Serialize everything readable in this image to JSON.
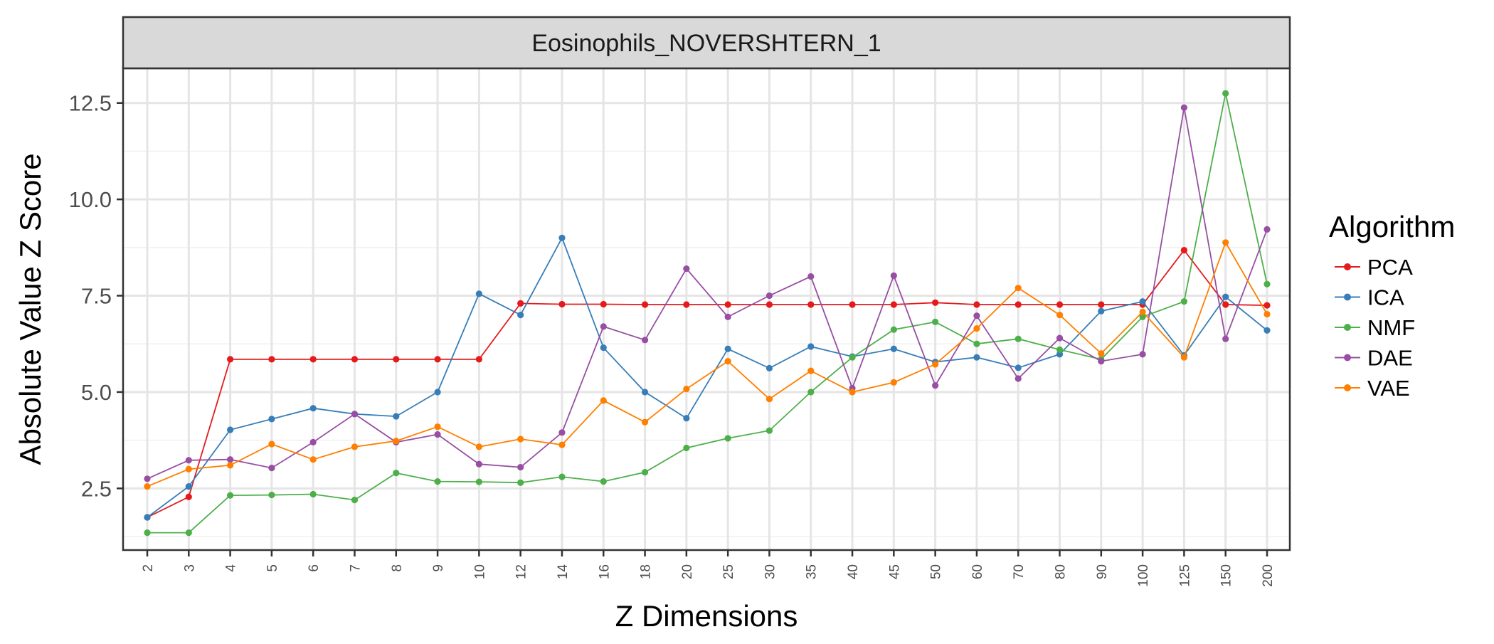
{
  "chart_data": {
    "type": "line",
    "facet_title": "Eosinophils_NOVERSHTERN_1",
    "xlabel": "Z Dimensions",
    "ylabel": "Absolute Value Z Score",
    "categories": [
      "2",
      "3",
      "4",
      "5",
      "6",
      "7",
      "8",
      "9",
      "10",
      "12",
      "14",
      "16",
      "18",
      "20",
      "25",
      "30",
      "35",
      "40",
      "45",
      "50",
      "60",
      "70",
      "80",
      "90",
      "100",
      "125",
      "150",
      "200"
    ],
    "yticks": [
      "2.5",
      "5.0",
      "7.5",
      "10.0",
      "12.5"
    ],
    "ylim": [
      0.9,
      13.4
    ],
    "grid": true,
    "legend": {
      "title": "Algorithm",
      "position": "right"
    },
    "series": [
      {
        "name": "PCA",
        "color": "#E41A1C",
        "values": [
          1.75,
          2.28,
          5.85,
          5.85,
          5.85,
          5.85,
          5.85,
          5.85,
          5.85,
          7.3,
          7.28,
          7.28,
          7.27,
          7.27,
          7.27,
          7.27,
          7.27,
          7.27,
          7.27,
          7.32,
          7.27,
          7.27,
          7.27,
          7.27,
          7.27,
          8.68,
          7.27,
          7.25
        ]
      },
      {
        "name": "ICA",
        "color": "#377EB8",
        "values": [
          1.75,
          2.55,
          4.02,
          4.3,
          4.58,
          4.43,
          4.37,
          5.0,
          7.55,
          7.0,
          9.0,
          6.15,
          5.0,
          4.32,
          6.12,
          5.62,
          6.18,
          5.92,
          6.12,
          5.78,
          5.9,
          5.63,
          5.98,
          7.1,
          7.35,
          5.95,
          7.47,
          6.6
        ]
      },
      {
        "name": "NMF",
        "color": "#4DAF4A",
        "values": [
          1.35,
          1.35,
          2.32,
          2.33,
          2.35,
          2.2,
          2.9,
          2.68,
          2.67,
          2.65,
          2.8,
          2.68,
          2.92,
          3.55,
          3.8,
          4.0,
          5.0,
          5.9,
          6.62,
          6.82,
          6.25,
          6.38,
          6.1,
          5.85,
          6.95,
          7.35,
          12.75,
          7.8
        ]
      },
      {
        "name": "DAE",
        "color": "#984EA3",
        "values": [
          2.75,
          3.23,
          3.25,
          3.03,
          3.7,
          4.43,
          3.7,
          3.9,
          3.13,
          3.05,
          3.95,
          6.7,
          6.35,
          8.2,
          6.95,
          7.5,
          8.0,
          5.1,
          8.02,
          5.17,
          6.98,
          5.35,
          6.4,
          5.8,
          5.98,
          12.38,
          6.38,
          9.22
        ]
      },
      {
        "name": "VAE",
        "color": "#FF7F00",
        "values": [
          2.55,
          3.0,
          3.1,
          3.65,
          3.25,
          3.58,
          3.73,
          4.1,
          3.58,
          3.78,
          3.63,
          4.78,
          4.22,
          5.08,
          5.8,
          4.82,
          5.55,
          5.0,
          5.25,
          5.72,
          6.65,
          7.7,
          7.0,
          6.0,
          7.08,
          5.9,
          8.88,
          7.02
        ]
      }
    ]
  }
}
